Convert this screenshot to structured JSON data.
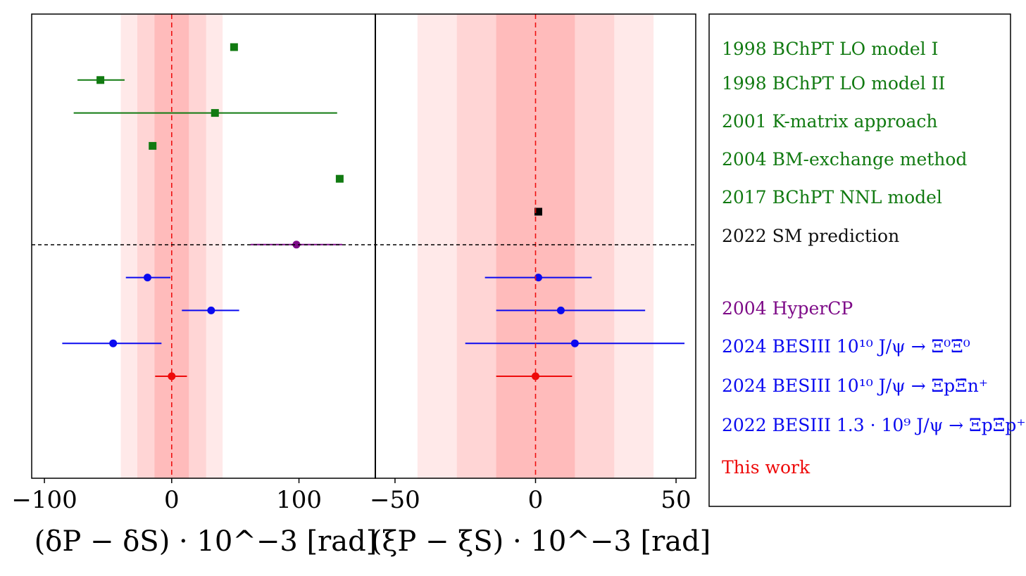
{
  "chart_data": [
    {
      "type": "scatter",
      "panel": "left",
      "xlabel": "(δP − δS) · 10^−3 [rad]",
      "xlim": [
        -110,
        160
      ],
      "xticks": [
        -100,
        0,
        100
      ],
      "tick_labels": [
        "−100",
        "0",
        "100"
      ],
      "reference_line": 0,
      "bands": [
        {
          "lo": -40,
          "hi": 40,
          "opacity": 0.1
        },
        {
          "lo": -27,
          "hi": 27,
          "opacity": 0.1
        },
        {
          "lo": -13.5,
          "hi": 13.5,
          "opacity": 0.15
        }
      ],
      "points": [
        {
          "row": 0,
          "x": 49,
          "xerr_lo": null,
          "xerr_hi": null,
          "marker": "square",
          "color": "#117a11"
        },
        {
          "row": 1,
          "x": -56,
          "xerr_lo": -74,
          "xerr_hi": -37,
          "marker": "square",
          "color": "#117a11"
        },
        {
          "row": 2,
          "x": 34,
          "xerr_lo": -77,
          "xerr_hi": 130,
          "marker": "square",
          "color": "#117a11"
        },
        {
          "row": 3,
          "x": -15,
          "xerr_lo": null,
          "xerr_hi": null,
          "marker": "square",
          "color": "#117a11"
        },
        {
          "row": 4,
          "x": 132,
          "xerr_lo": null,
          "xerr_hi": null,
          "marker": "square",
          "color": "#117a11"
        },
        {
          "row": 6,
          "x": 98,
          "xerr_lo": 62,
          "xerr_hi": 134,
          "marker": "circle",
          "color": "#7d0a87"
        },
        {
          "row": 7,
          "x": -19,
          "xerr_lo": -36,
          "xerr_hi": -1,
          "marker": "circle",
          "color": "#0a0af0"
        },
        {
          "row": 8,
          "x": 31,
          "xerr_lo": 8,
          "xerr_hi": 53,
          "marker": "circle",
          "color": "#0a0af0"
        },
        {
          "row": 9,
          "x": -46,
          "xerr_lo": -86,
          "xerr_hi": -8,
          "marker": "circle",
          "color": "#0a0af0"
        },
        {
          "row": 10,
          "x": 0,
          "xerr_lo": -13,
          "xerr_hi": 12,
          "marker": "circle",
          "color": "#ee0a0a"
        }
      ]
    },
    {
      "type": "scatter",
      "panel": "right",
      "xlabel": "(ξP − ξS) · 10^−3 [rad]",
      "xlim": [
        -57,
        57
      ],
      "xticks": [
        -50,
        0,
        50
      ],
      "tick_labels": [
        "−50",
        "0",
        "50"
      ],
      "reference_line": 0,
      "bands": [
        {
          "lo": -42,
          "hi": 42,
          "opacity": 0.1
        },
        {
          "lo": -28,
          "hi": 28,
          "opacity": 0.1
        },
        {
          "lo": -14,
          "hi": 14,
          "opacity": 0.15
        }
      ],
      "points": [
        {
          "row": 5,
          "x": 1,
          "xerr_lo": null,
          "xerr_hi": null,
          "marker": "square",
          "color": "#000000"
        },
        {
          "row": 7,
          "x": 1,
          "xerr_lo": -18,
          "xerr_hi": 20,
          "marker": "circle",
          "color": "#0a0af0"
        },
        {
          "row": 8,
          "x": 9,
          "xerr_lo": -14,
          "xerr_hi": 39,
          "marker": "circle",
          "color": "#0a0af0"
        },
        {
          "row": 9,
          "x": 14,
          "xerr_lo": -25,
          "xerr_hi": 53,
          "marker": "circle",
          "color": "#0a0af0"
        },
        {
          "row": 10,
          "x": 0,
          "xerr_lo": -14,
          "xerr_hi": 13,
          "marker": "circle",
          "color": "#ee0a0a"
        }
      ]
    }
  ],
  "legend": {
    "entries": [
      {
        "label": "1998 BChPT LO model I",
        "color": "#117a11"
      },
      {
        "label": "1998 BChPT LO model II",
        "color": "#117a11"
      },
      {
        "label": "2001 K-matrix approach",
        "color": "#117a11"
      },
      {
        "label": "2004 BM-exchange method",
        "color": "#117a11"
      },
      {
        "label": "2017 BChPT NNL model",
        "color": "#117a11"
      },
      {
        "label": "2022 SM prediction",
        "color": "#111111"
      },
      {
        "label": "2004 HyperCP",
        "color": "#7d0a87"
      },
      {
        "label": "2024 BESIII 10¹⁰ J/ψ → Ξ⁰Ξ̄⁰",
        "color": "#0a0af0"
      },
      {
        "label": "2024 BESIII 10¹⁰ J/ψ → ΞpΞ̄n⁺",
        "color": "#0a0af0"
      },
      {
        "label": "2022 BESIII 1.3 · 10⁹ J/ψ → ΞpΞ̄p⁺",
        "color": "#0a0af0"
      },
      {
        "label": "This work",
        "color": "#ee0a0a"
      }
    ]
  }
}
